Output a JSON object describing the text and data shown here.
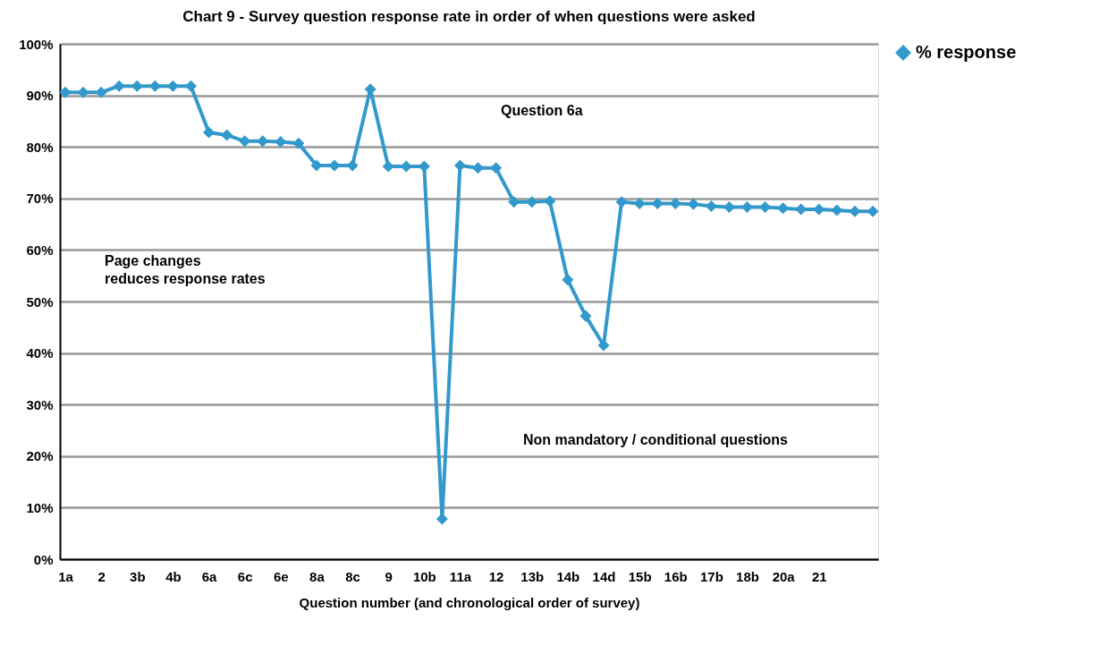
{
  "chart_data": {
    "type": "line",
    "title": "Chart 9 - Survey question response rate in order of when questions were asked",
    "xlabel": "Question number (and chronological order of survey)",
    "categories": [
      "1a",
      null,
      "2",
      null,
      "3b",
      null,
      "4b",
      null,
      "6a",
      null,
      "6c",
      null,
      "6e",
      null,
      "8a",
      null,
      "8c",
      null,
      "9",
      null,
      "10b",
      null,
      "11a",
      null,
      "12",
      null,
      "13b",
      null,
      "14b",
      null,
      "14d",
      null,
      "15b",
      null,
      "16b",
      null,
      "17b",
      null,
      "18b",
      null,
      "20a",
      null,
      "21",
      null,
      null,
      null
    ],
    "series": [
      {
        "name": "% response",
        "color": "#3399cc",
        "values": [
          90.6,
          90.6,
          90.6,
          91.8,
          91.8,
          91.8,
          91.8,
          91.8,
          82.8,
          82.3,
          81.1,
          81.1,
          81,
          80.7,
          76.4,
          76.4,
          76.4,
          91.2,
          76.2,
          76.2,
          76.2,
          7.8,
          76.4,
          75.9,
          75.9,
          69.3,
          69.3,
          69.5,
          54.2,
          47.2,
          41.5,
          69.3,
          69,
          69,
          69,
          68.9,
          68.5,
          68.3,
          68.3,
          68.3,
          68.1,
          67.9,
          67.9,
          67.7,
          67.5,
          67.5
        ]
      }
    ],
    "ylim": [
      0,
      100
    ],
    "yticks": [
      {
        "value": 0,
        "label": "0%"
      },
      {
        "value": 10,
        "label": "10%"
      },
      {
        "value": 20,
        "label": "20%"
      },
      {
        "value": 30,
        "label": "30%"
      },
      {
        "value": 40,
        "label": "40%"
      },
      {
        "value": 50,
        "label": "50%"
      },
      {
        "value": 60,
        "label": "60%"
      },
      {
        "value": 70,
        "label": "70%"
      },
      {
        "value": 80,
        "label": "80%"
      },
      {
        "value": 90,
        "label": "90%"
      },
      {
        "value": 100,
        "label": "100%"
      }
    ],
    "annotations": [
      "Question 6a",
      "Page changes\nreduces response rates",
      "Non mandatory / conditional questions"
    ],
    "grid": "y",
    "legend": "right",
    "marker": "diamond",
    "line_style": "solid"
  }
}
